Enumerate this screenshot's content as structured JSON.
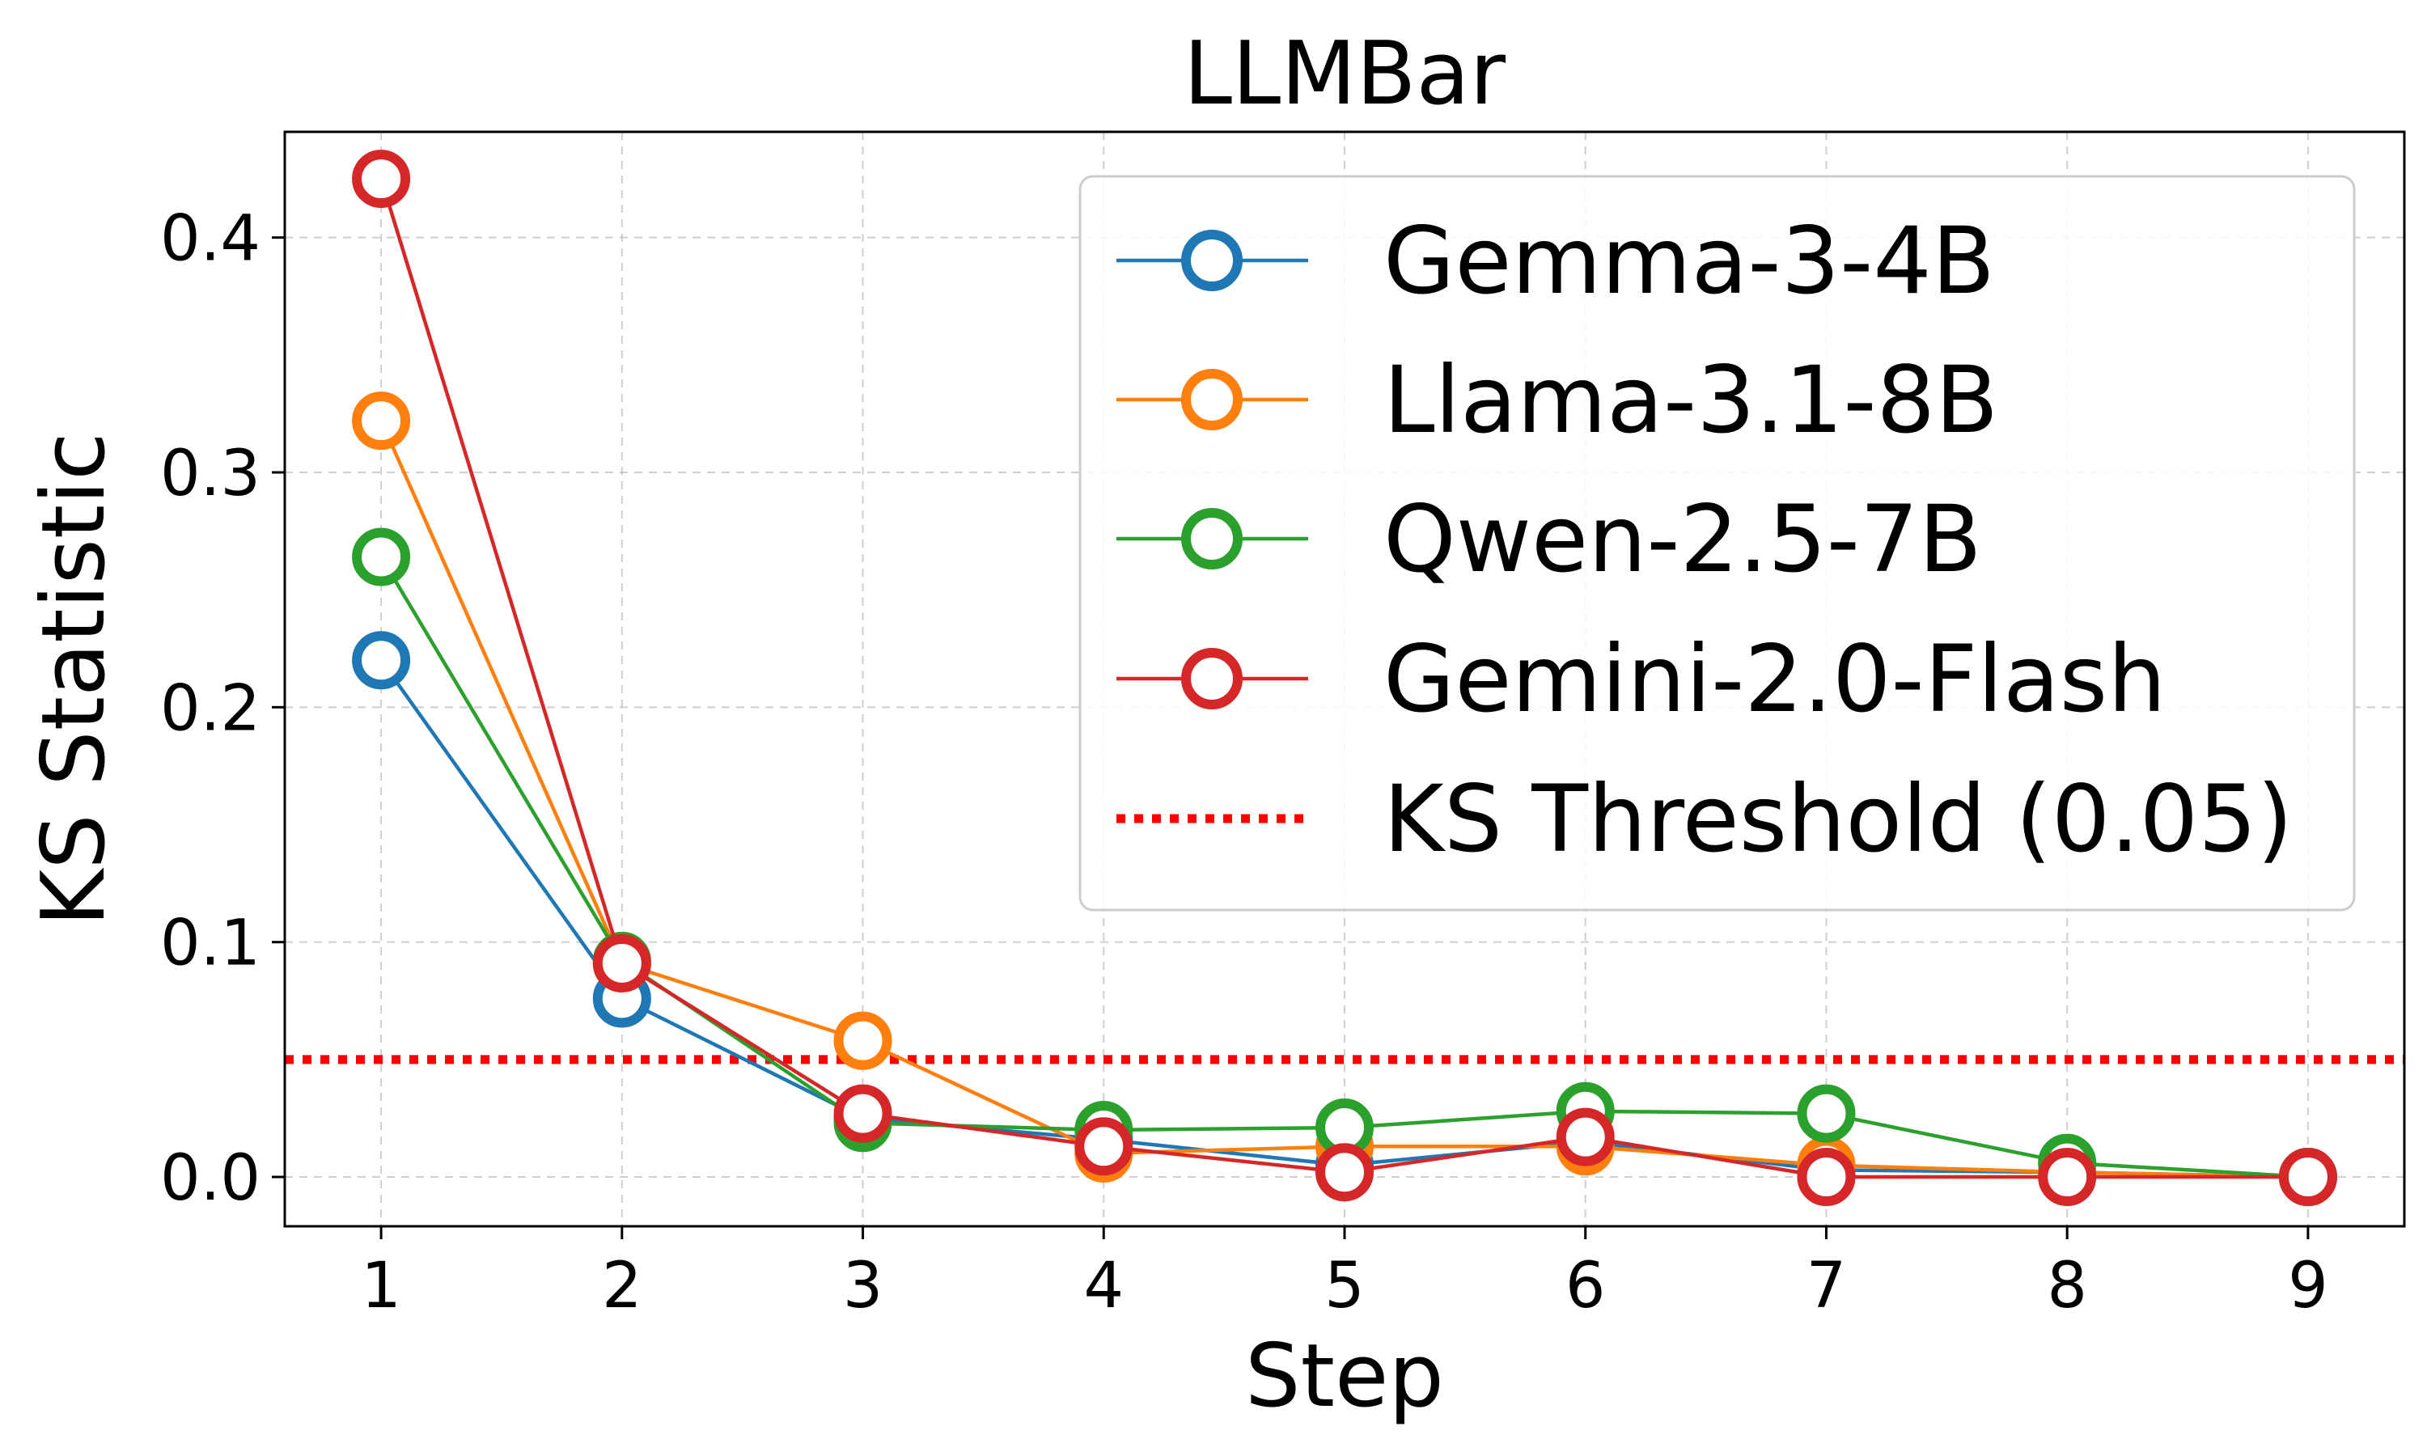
{
  "chart_data": {
    "type": "line",
    "title": "LLMBar",
    "xlabel": "Step",
    "ylabel": "KS Statistic",
    "x": [
      1,
      2,
      3,
      4,
      5,
      6,
      7,
      8,
      9
    ],
    "xlim": [
      0.6,
      9.4
    ],
    "ylim": [
      -0.021,
      0.445
    ],
    "xticks": [
      1,
      2,
      3,
      4,
      5,
      6,
      7,
      8,
      9
    ],
    "yticks": [
      0.0,
      0.1,
      0.2,
      0.3,
      0.4
    ],
    "ytick_labels": [
      "0.0",
      "0.1",
      "0.2",
      "0.3",
      "0.4"
    ],
    "grid": true,
    "legend_position": "top-right",
    "series": [
      {
        "name": "Gemma-3-4B",
        "color": "#1f77b4",
        "marker": "open-circle",
        "values": [
          0.22,
          0.076,
          0.025,
          0.016,
          0.005,
          0.015,
          0.003,
          0.002,
          0.0
        ]
      },
      {
        "name": "Llama-3.1-8B",
        "color": "#ff7f0e",
        "marker": "open-circle",
        "values": [
          0.322,
          0.091,
          0.058,
          0.01,
          0.013,
          0.013,
          0.005,
          0.002,
          0.0
        ]
      },
      {
        "name": "Qwen-2.5-7B",
        "color": "#2ca02c",
        "marker": "open-circle",
        "values": [
          0.264,
          0.092,
          0.023,
          0.02,
          0.021,
          0.028,
          0.027,
          0.006,
          0.0
        ]
      },
      {
        "name": "Gemini-2.0-Flash",
        "color": "#d62728",
        "marker": "open-circle",
        "values": [
          0.425,
          0.091,
          0.027,
          0.013,
          0.002,
          0.017,
          0.0,
          0.0,
          0.0
        ]
      }
    ],
    "threshold": {
      "name": "KS Threshold (0.05)",
      "value": 0.05,
      "color": "#ff0000",
      "style": "dotted"
    }
  }
}
